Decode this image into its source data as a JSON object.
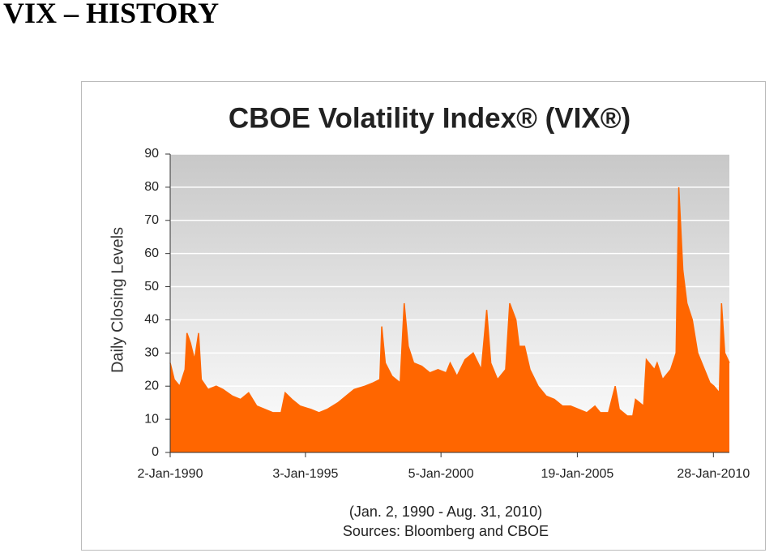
{
  "header": {
    "title": "VIX – HISTORY"
  },
  "chart_data": {
    "type": "area",
    "title": "CBOE Volatility Index® (VIX®)",
    "y_label": "Daily Closing Levels",
    "caption": [
      "(Jan. 2, 1990 - Aug. 31, 2010)",
      "Sources: Bloomberg and CBOE"
    ],
    "color": "#ff6600",
    "grid": true,
    "xlim": [
      1990.0,
      2010.67
    ],
    "xticks": [
      {
        "value": 1990.0,
        "label": "2-Jan-1990"
      },
      {
        "value": 1995.0,
        "label": "3-Jan-1995"
      },
      {
        "value": 2000.01,
        "label": "5-Jan-2000"
      },
      {
        "value": 2005.05,
        "label": "19-Jan-2005"
      },
      {
        "value": 2010.08,
        "label": "28-Jan-2010"
      }
    ],
    "ylim": [
      0,
      90
    ],
    "yticks": [
      0,
      10,
      20,
      30,
      40,
      50,
      60,
      70,
      80,
      90
    ],
    "x": [
      1990.0,
      1990.15,
      1990.35,
      1990.55,
      1990.62,
      1990.75,
      1990.9,
      1991.05,
      1991.15,
      1991.4,
      1991.7,
      1991.95,
      1992.3,
      1992.6,
      1992.9,
      1993.2,
      1993.5,
      1993.8,
      1994.1,
      1994.25,
      1994.5,
      1994.8,
      1995.2,
      1995.5,
      1995.8,
      1996.2,
      1996.5,
      1996.8,
      1997.2,
      1997.5,
      1997.75,
      1997.82,
      1997.95,
      1998.2,
      1998.5,
      1998.65,
      1998.8,
      1999.0,
      1999.3,
      1999.6,
      1999.9,
      2000.2,
      2000.35,
      2000.6,
      2000.9,
      2001.2,
      2001.5,
      2001.7,
      2001.85,
      2002.1,
      2002.4,
      2002.55,
      2002.78,
      2002.9,
      2003.1,
      2003.3,
      2003.6,
      2003.9,
      2004.2,
      2004.5,
      2004.8,
      2005.1,
      2005.4,
      2005.7,
      2005.9,
      2006.2,
      2006.45,
      2006.6,
      2006.9,
      2007.1,
      2007.2,
      2007.5,
      2007.6,
      2007.9,
      2008.0,
      2008.2,
      2008.5,
      2008.7,
      2008.8,
      2008.95,
      2009.1,
      2009.3,
      2009.5,
      2009.75,
      2009.95,
      2010.1,
      2010.3,
      2010.38,
      2010.5,
      2010.67
    ],
    "values": [
      27,
      22,
      20,
      25,
      36,
      33,
      28,
      36,
      22,
      19,
      20,
      19,
      17,
      16,
      18,
      14,
      13,
      12,
      12,
      18,
      16,
      14,
      13,
      12,
      13,
      15,
      17,
      19,
      20,
      21,
      22,
      38,
      27,
      23,
      21,
      45,
      32,
      27,
      26,
      24,
      25,
      24,
      27,
      23,
      28,
      30,
      25,
      43,
      27,
      22,
      25,
      45,
      40,
      32,
      32,
      25,
      20,
      17,
      16,
      14,
      14,
      13,
      12,
      14,
      12,
      12,
      20,
      13,
      11,
      11,
      16,
      14,
      28,
      25,
      27,
      22,
      25,
      30,
      80,
      55,
      45,
      40,
      30,
      25,
      21,
      20,
      18,
      45,
      30,
      27
    ]
  }
}
